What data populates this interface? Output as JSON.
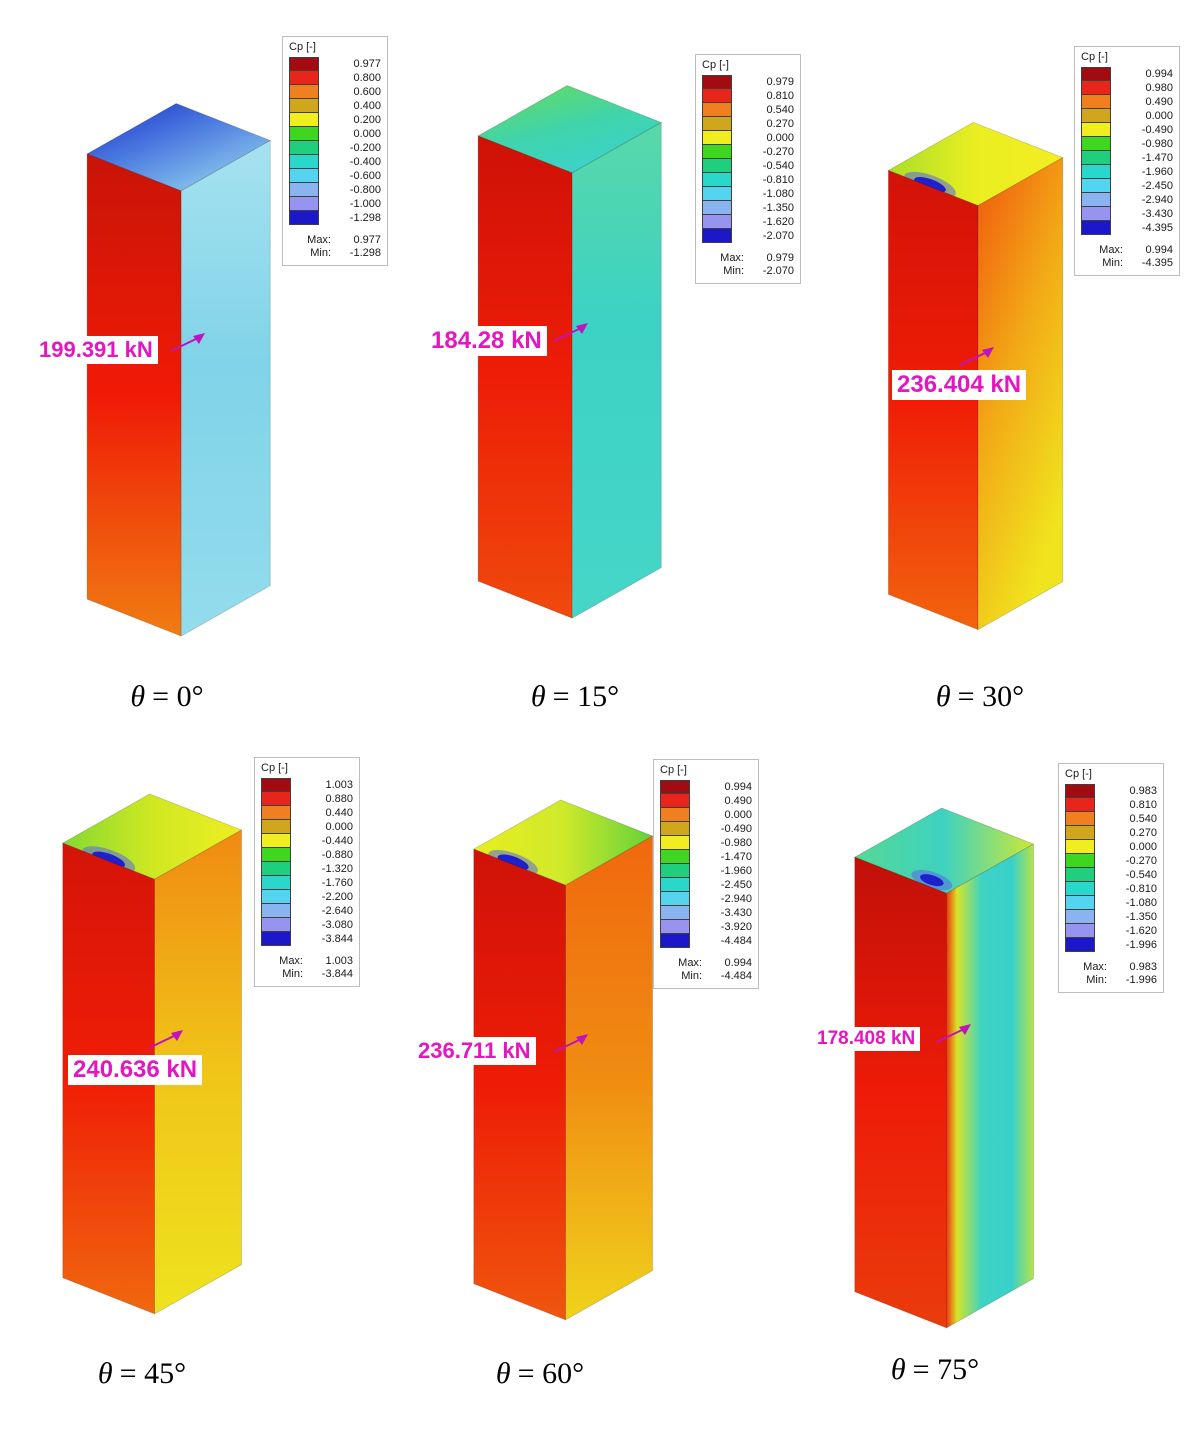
{
  "legend_title": "Cp [-]",
  "max_label": "Max:",
  "min_label": "Min:",
  "legend_colors": [
    "#a30b12",
    "#e8251a",
    "#f0801f",
    "#cfa61c",
    "#f0ee1e",
    "#3ed61e",
    "#1fcf7e",
    "#2ad8cb",
    "#55d4f0",
    "#8ab4f0",
    "#9694ee",
    "#1a18c8"
  ],
  "arrow_color": "#c013c0",
  "panels": [
    {
      "theta_symbol": "θ",
      "theta_rest": "= 0°",
      "theta_text": "θ = 0°",
      "force": "199.391 kN",
      "legend": {
        "values": [
          "0.977",
          "0.800",
          "0.600",
          "0.400",
          "0.200",
          "0.000",
          "-0.200",
          "-0.400",
          "-0.600",
          "-0.800",
          "-1.000",
          "-1.298"
        ],
        "max": "0.977",
        "min": "-1.298"
      },
      "faces": {
        "front": [
          "#c81407",
          "#f01a06",
          "#f07c12"
        ],
        "side": [
          "#a6e2f0",
          "#80d3e8",
          "#93dcec"
        ],
        "top": [
          "#1b2ec8",
          "#4a7ae0",
          "#97d6ee"
        ]
      }
    },
    {
      "theta_symbol": "θ",
      "theta_rest": "= 15°",
      "theta_text": "θ = 15°",
      "force": "184.28 kN",
      "legend": {
        "values": [
          "0.979",
          "0.810",
          "0.540",
          "0.270",
          "0.000",
          "-0.270",
          "-0.540",
          "-0.810",
          "-1.080",
          "-1.350",
          "-1.620",
          "-2.070"
        ],
        "max": "0.979",
        "min": "-2.070"
      },
      "faces": {
        "front": [
          "#ce1107",
          "#ee1d07",
          "#ef4a0c"
        ],
        "side": [
          "#59d8a8",
          "#3cd2c4",
          "#46d6c8"
        ],
        "top": [
          "#62da62",
          "#40d4ac",
          "#3cd2ce"
        ]
      }
    },
    {
      "theta_symbol": "θ",
      "theta_rest": "= 30°",
      "theta_text": "θ = 30°",
      "force": "236.404 kN",
      "legend": {
        "values": [
          "0.994",
          "0.980",
          "0.490",
          "0.000",
          "-0.490",
          "-0.980",
          "-1.470",
          "-1.960",
          "-2.450",
          "-2.940",
          "-3.430",
          "-4.395"
        ],
        "max": "0.994",
        "min": "-4.395"
      },
      "faces": {
        "front": [
          "#d21208",
          "#f01d06",
          "#f2640e"
        ],
        "side": [
          "#f0560e",
          "#f2a816",
          "#f0e41e"
        ],
        "top": [
          "#aade2a",
          "#eaee20",
          "#f2ee22"
        ],
        "spot_inner": "#1d20cc",
        "spot_outer": "#5a66e2"
      }
    },
    {
      "theta_symbol": "θ",
      "theta_rest": "= 45°",
      "theta_text": "θ = 45°",
      "force": "240.636 kN",
      "legend": {
        "values": [
          "1.003",
          "0.880",
          "0.440",
          "0.000",
          "-0.440",
          "-0.880",
          "-1.320",
          "-1.760",
          "-2.200",
          "-2.640",
          "-3.080",
          "-3.844"
        ],
        "max": "1.003",
        "min": "-3.844"
      },
      "faces": {
        "front": [
          "#d41409",
          "#f01d06",
          "#f0680f"
        ],
        "side": [
          "#f08a12",
          "#f0c518",
          "#eee31e"
        ],
        "top": [
          "#86d832",
          "#cfe822",
          "#eeee22"
        ],
        "spot_inner": "#1d20cc",
        "spot_outer": "#5a66e2"
      }
    },
    {
      "theta_symbol": "θ",
      "theta_rest": "= 60°",
      "theta_text": "θ = 60°",
      "force": "236.711 kN",
      "legend": {
        "values": [
          "0.994",
          "0.490",
          "0.000",
          "-0.490",
          "-0.980",
          "-1.470",
          "-1.960",
          "-2.450",
          "-2.940",
          "-3.430",
          "-3.920",
          "-4.484"
        ],
        "max": "0.994",
        "min": "-4.484"
      },
      "faces": {
        "front": [
          "#cf1208",
          "#ee1c06",
          "#f0560e"
        ],
        "side": [
          "#f0680e",
          "#f08c12",
          "#efd31c"
        ],
        "top": [
          "#e8ee20",
          "#cfe92a",
          "#62d23a"
        ],
        "spot_inner": "#1d20cc",
        "spot_outer": "#5a66e2"
      }
    },
    {
      "theta_symbol": "θ",
      "theta_rest": "= 75°",
      "theta_text": "θ = 75°",
      "force": "178.408 kN",
      "legend": {
        "values": [
          "0.983",
          "0.810",
          "0.540",
          "0.270",
          "0.000",
          "-0.270",
          "-0.540",
          "-0.810",
          "-1.080",
          "-1.350",
          "-1.620",
          "-1.996"
        ],
        "max": "0.983",
        "min": "-1.996"
      },
      "faces": {
        "front": [
          "#c11009",
          "#ee1b08",
          "#ea3c0c"
        ],
        "side": [
          "#f0380e",
          "#d8e428",
          "#3ed4c2",
          "#38d0cc",
          "#b4e444"
        ],
        "top": [
          "#55d896",
          "#3ed2c0",
          "#cde838"
        ],
        "spot_inner": "#1d20cc",
        "spot_outer": "#5a66e2"
      }
    }
  ],
  "chart_data": {
    "type": "heatmap",
    "title": "",
    "legend_title": "Cp [-]",
    "legend_position": "top-right of each panel",
    "series": [
      {
        "name": "θ = 0°",
        "wind_angle_deg": 0,
        "resultant_force_kN": 199.391,
        "cp_max": 0.977,
        "cp_min": -1.298,
        "cp_legend_scale": [
          0.977,
          0.8,
          0.6,
          0.4,
          0.2,
          0.0,
          -0.2,
          -0.4,
          -0.6,
          -0.8,
          -1.0,
          -1.298
        ]
      },
      {
        "name": "θ = 15°",
        "wind_angle_deg": 15,
        "resultant_force_kN": 184.28,
        "cp_max": 0.979,
        "cp_min": -2.07,
        "cp_legend_scale": [
          0.979,
          0.81,
          0.54,
          0.27,
          0.0,
          -0.27,
          -0.54,
          -0.81,
          -1.08,
          -1.35,
          -1.62,
          -2.07
        ]
      },
      {
        "name": "θ = 30°",
        "wind_angle_deg": 30,
        "resultant_force_kN": 236.404,
        "cp_max": 0.994,
        "cp_min": -4.395,
        "cp_legend_scale": [
          0.994,
          0.98,
          0.49,
          0.0,
          -0.49,
          -0.98,
          -1.47,
          -1.96,
          -2.45,
          -2.94,
          -3.43,
          -4.395
        ]
      },
      {
        "name": "θ = 45°",
        "wind_angle_deg": 45,
        "resultant_force_kN": 240.636,
        "cp_max": 1.003,
        "cp_min": -3.844,
        "cp_legend_scale": [
          1.003,
          0.88,
          0.44,
          0.0,
          -0.44,
          -0.88,
          -1.32,
          -1.76,
          -2.2,
          -2.64,
          -3.08,
          -3.844
        ]
      },
      {
        "name": "θ = 60°",
        "wind_angle_deg": 60,
        "resultant_force_kN": 236.711,
        "cp_max": 0.994,
        "cp_min": -4.484,
        "cp_legend_scale": [
          0.994,
          0.49,
          0.0,
          -0.49,
          -0.98,
          -1.47,
          -1.96,
          -2.45,
          -2.94,
          -3.43,
          -3.92,
          -4.484
        ]
      },
      {
        "name": "θ = 75°",
        "wind_angle_deg": 75,
        "resultant_force_kN": 178.408,
        "cp_max": 0.983,
        "cp_min": -1.996,
        "cp_legend_scale": [
          0.983,
          0.81,
          0.54,
          0.27,
          0.0,
          -0.27,
          -0.54,
          -0.81,
          -1.08,
          -1.35,
          -1.62,
          -1.996
        ]
      }
    ]
  }
}
